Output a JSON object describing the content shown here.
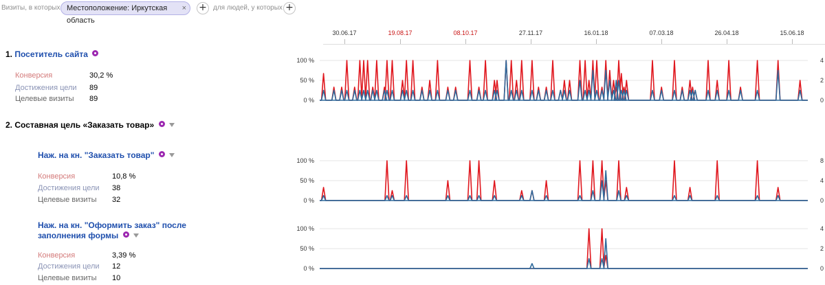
{
  "filter": {
    "prefix": "Визиты, в которых",
    "chip": "Местоположение: Иркутская область",
    "chip_close": "×",
    "add": "+",
    "middle": "для людей, у которых",
    "add2": "+"
  },
  "timeline": {
    "labels": [
      {
        "text": "30.06.17",
        "highlight": false
      },
      {
        "text": "19.08.17",
        "highlight": true
      },
      {
        "text": "08.10.17",
        "highlight": true
      },
      {
        "text": "27.11.17",
        "highlight": false
      },
      {
        "text": "16.01.18",
        "highlight": false
      },
      {
        "text": "07.03.18",
        "highlight": false
      },
      {
        "text": "26.04.18",
        "highlight": false
      },
      {
        "text": "15.06.18",
        "highlight": false
      }
    ]
  },
  "goals": [
    {
      "number": "1.",
      "title": "Посетитель сайта",
      "metrics": [
        {
          "label": "Конверсия",
          "value": "30,2 %"
        },
        {
          "label": "Достижения цели",
          "value": "89"
        },
        {
          "label": "Целевые визиты",
          "value": "89"
        }
      ]
    },
    {
      "number": "2.",
      "title": "Составная цель «Заказать товар»",
      "steps": [
        {
          "title": "Наж. на кн. \"Заказать товар\"",
          "metrics": [
            {
              "label": "Конверсия",
              "value": "10,8 %"
            },
            {
              "label": "Достижения цели",
              "value": "38"
            },
            {
              "label": "Целевые визиты",
              "value": "32"
            }
          ]
        },
        {
          "title_line1": "Наж. на кн. \"Оформить заказ\" после",
          "title_line2": "заполнения формы",
          "metrics": [
            {
              "label": "Конверсия",
              "value": "3,39 %"
            },
            {
              "label": "Достижения цели",
              "value": "12"
            },
            {
              "label": "Целевые визиты",
              "value": "10"
            }
          ]
        }
      ]
    }
  ],
  "colors": {
    "conversion": "#e0171e",
    "visits": "#2e6a9c",
    "grid": "#e4e4e4",
    "axis": "#888888"
  },
  "chart_data": [
    {
      "type": "line",
      "title": "Посетитель сайта",
      "x_range": [
        "2017-06-19",
        "2018-07-01"
      ],
      "y_left": {
        "ticks": [
          "100 %",
          "50 %",
          "0 %"
        ],
        "range": [
          0,
          100
        ]
      },
      "y_right": {
        "ticks": [
          "4",
          "2",
          "0"
        ],
        "range": [
          0,
          4
        ]
      },
      "series": [
        {
          "name": "Конверсия",
          "axis": "left",
          "color": "#e0171e",
          "points": [
            [
              "2017-06-22",
              67
            ],
            [
              "2017-06-30",
              33
            ],
            [
              "2017-07-06",
              33
            ],
            [
              "2017-07-10",
              100
            ],
            [
              "2017-07-16",
              33
            ],
            [
              "2017-07-20",
              100
            ],
            [
              "2017-07-23",
              100
            ],
            [
              "2017-07-26",
              100
            ],
            [
              "2017-07-30",
              33
            ],
            [
              "2017-08-02",
              100
            ],
            [
              "2017-08-08",
              33
            ],
            [
              "2017-08-10",
              100
            ],
            [
              "2017-08-14",
              100
            ],
            [
              "2017-08-22",
              50
            ],
            [
              "2017-08-25",
              100
            ],
            [
              "2017-08-30",
              100
            ],
            [
              "2017-09-06",
              33
            ],
            [
              "2017-09-12",
              50
            ],
            [
              "2017-09-18",
              100
            ],
            [
              "2017-09-26",
              33
            ],
            [
              "2017-10-02",
              33
            ],
            [
              "2017-10-13",
              100
            ],
            [
              "2017-10-20",
              33
            ],
            [
              "2017-10-25",
              100
            ],
            [
              "2017-11-01",
              50
            ],
            [
              "2017-11-03",
              50
            ],
            [
              "2017-11-10",
              100
            ],
            [
              "2017-11-14",
              100
            ],
            [
              "2017-11-18",
              50
            ],
            [
              "2017-11-22",
              100
            ],
            [
              "2017-11-30",
              100
            ],
            [
              "2017-12-05",
              33
            ],
            [
              "2017-12-11",
              33
            ],
            [
              "2017-12-16",
              100
            ],
            [
              "2017-12-22",
              25
            ],
            [
              "2017-12-25",
              50
            ],
            [
              "2017-12-29",
              50
            ],
            [
              "2018-01-06",
              100
            ],
            [
              "2018-01-10",
              100
            ],
            [
              "2018-01-13",
              50
            ],
            [
              "2018-01-16",
              100
            ],
            [
              "2018-01-19",
              100
            ],
            [
              "2018-01-23",
              33
            ],
            [
              "2018-01-26",
              100
            ],
            [
              "2018-01-29",
              75
            ],
            [
              "2018-02-01",
              50
            ],
            [
              "2018-02-03",
              33
            ],
            [
              "2018-02-05",
              100
            ],
            [
              "2018-02-07",
              67
            ],
            [
              "2018-02-09",
              33
            ],
            [
              "2018-02-11",
              50
            ],
            [
              "2018-03-03",
              100
            ],
            [
              "2018-03-10",
              33
            ],
            [
              "2018-03-20",
              100
            ],
            [
              "2018-03-26",
              33
            ],
            [
              "2018-04-01",
              50
            ],
            [
              "2018-04-03",
              33
            ],
            [
              "2018-04-05",
              25
            ],
            [
              "2018-04-15",
              100
            ],
            [
              "2018-04-22",
              50
            ],
            [
              "2018-05-01",
              100
            ],
            [
              "2018-05-10",
              33
            ],
            [
              "2018-05-23",
              100
            ],
            [
              "2018-06-08",
              100
            ],
            [
              "2018-06-25",
              50
            ]
          ]
        },
        {
          "name": "Целевые визиты",
          "axis": "right",
          "color": "#2e6a9c",
          "points": [
            [
              "2017-06-22",
              1
            ],
            [
              "2017-06-30",
              1
            ],
            [
              "2017-07-06",
              1
            ],
            [
              "2017-07-10",
              1
            ],
            [
              "2017-07-16",
              1
            ],
            [
              "2017-07-20",
              1
            ],
            [
              "2017-07-23",
              1
            ],
            [
              "2017-07-26",
              1
            ],
            [
              "2017-07-30",
              1
            ],
            [
              "2017-08-02",
              1
            ],
            [
              "2017-08-08",
              1
            ],
            [
              "2017-08-10",
              1
            ],
            [
              "2017-08-14",
              1
            ],
            [
              "2017-08-22",
              1
            ],
            [
              "2017-08-25",
              1
            ],
            [
              "2017-08-30",
              1
            ],
            [
              "2017-09-06",
              1
            ],
            [
              "2017-09-12",
              1
            ],
            [
              "2017-09-18",
              1
            ],
            [
              "2017-09-26",
              1
            ],
            [
              "2017-10-02",
              1
            ],
            [
              "2017-10-13",
              1
            ],
            [
              "2017-10-20",
              1
            ],
            [
              "2017-10-25",
              1
            ],
            [
              "2017-11-01",
              1
            ],
            [
              "2017-11-03",
              1
            ],
            [
              "2017-11-10",
              4
            ],
            [
              "2017-11-14",
              1
            ],
            [
              "2017-11-18",
              1
            ],
            [
              "2017-11-22",
              1
            ],
            [
              "2017-11-30",
              1
            ],
            [
              "2017-12-05",
              1
            ],
            [
              "2017-12-11",
              1
            ],
            [
              "2017-12-16",
              1
            ],
            [
              "2017-12-22",
              1
            ],
            [
              "2017-12-25",
              1
            ],
            [
              "2017-12-29",
              1
            ],
            [
              "2018-01-06",
              2
            ],
            [
              "2018-01-10",
              1
            ],
            [
              "2018-01-13",
              1
            ],
            [
              "2018-01-16",
              3
            ],
            [
              "2018-01-19",
              1
            ],
            [
              "2018-01-23",
              1
            ],
            [
              "2018-01-26",
              3
            ],
            [
              "2018-01-29",
              2
            ],
            [
              "2018-02-01",
              1
            ],
            [
              "2018-02-03",
              2
            ],
            [
              "2018-02-05",
              2
            ],
            [
              "2018-02-07",
              1
            ],
            [
              "2018-02-09",
              1
            ],
            [
              "2018-02-11",
              1
            ],
            [
              "2018-03-03",
              1
            ],
            [
              "2018-03-10",
              1
            ],
            [
              "2018-03-20",
              1
            ],
            [
              "2018-03-26",
              1
            ],
            [
              "2018-04-01",
              1
            ],
            [
              "2018-04-03",
              1
            ],
            [
              "2018-04-05",
              1
            ],
            [
              "2018-04-15",
              1
            ],
            [
              "2018-04-22",
              1
            ],
            [
              "2018-05-01",
              1
            ],
            [
              "2018-05-10",
              1
            ],
            [
              "2018-05-23",
              1
            ],
            [
              "2018-06-08",
              3
            ],
            [
              "2018-06-25",
              1
            ]
          ]
        }
      ]
    },
    {
      "type": "line",
      "title": "Наж. на кн. \"Заказать товар\"",
      "x_range": [
        "2017-06-19",
        "2018-07-01"
      ],
      "y_left": {
        "ticks": [
          "100 %",
          "50 %",
          "0 %"
        ],
        "range": [
          0,
          100
        ]
      },
      "y_right": {
        "ticks": [
          "8",
          "4",
          "0"
        ],
        "range": [
          0,
          8
        ]
      },
      "series": [
        {
          "name": "Конверсия",
          "axis": "left",
          "color": "#e0171e",
          "points": [
            [
              "2017-06-22",
              33
            ],
            [
              "2017-08-10",
              100
            ],
            [
              "2017-08-14",
              25
            ],
            [
              "2017-08-25",
              100
            ],
            [
              "2017-09-26",
              50
            ],
            [
              "2017-10-13",
              100
            ],
            [
              "2017-10-20",
              100
            ],
            [
              "2017-11-01",
              50
            ],
            [
              "2017-11-22",
              25
            ],
            [
              "2017-11-30",
              25
            ],
            [
              "2017-12-11",
              50
            ],
            [
              "2018-01-06",
              100
            ],
            [
              "2018-01-16",
              100
            ],
            [
              "2018-01-23",
              100
            ],
            [
              "2018-01-26",
              50
            ],
            [
              "2018-02-05",
              100
            ],
            [
              "2018-02-11",
              33
            ],
            [
              "2018-03-20",
              100
            ],
            [
              "2018-04-01",
              33
            ],
            [
              "2018-04-22",
              100
            ],
            [
              "2018-05-23",
              100
            ],
            [
              "2018-06-08",
              33
            ]
          ]
        },
        {
          "name": "Целевые визиты",
          "axis": "right",
          "color": "#2e6a9c",
          "points": [
            [
              "2017-06-22",
              1
            ],
            [
              "2017-08-10",
              1
            ],
            [
              "2017-08-14",
              1
            ],
            [
              "2017-08-25",
              1
            ],
            [
              "2017-09-26",
              1
            ],
            [
              "2017-10-13",
              1
            ],
            [
              "2017-10-20",
              1
            ],
            [
              "2017-11-01",
              1
            ],
            [
              "2017-11-22",
              1
            ],
            [
              "2017-11-30",
              2
            ],
            [
              "2017-12-11",
              1
            ],
            [
              "2018-01-06",
              1
            ],
            [
              "2018-01-16",
              2
            ],
            [
              "2018-01-23",
              4
            ],
            [
              "2018-01-26",
              6
            ],
            [
              "2018-02-05",
              2
            ],
            [
              "2018-02-11",
              1
            ],
            [
              "2018-03-20",
              1
            ],
            [
              "2018-04-01",
              1
            ],
            [
              "2018-04-22",
              1
            ],
            [
              "2018-05-23",
              1
            ],
            [
              "2018-06-08",
              1
            ]
          ]
        }
      ]
    },
    {
      "type": "line",
      "title": "Наж. на кн. \"Оформить заказ\" после заполнения формы",
      "x_range": [
        "2017-06-19",
        "2018-07-01"
      ],
      "y_left": {
        "ticks": [
          "100 %",
          "50 %",
          "0 %"
        ],
        "range": [
          0,
          100
        ]
      },
      "y_right": {
        "ticks": [
          "4",
          "2",
          "0"
        ],
        "range": [
          0,
          4
        ]
      },
      "series": [
        {
          "name": "Конверсия",
          "axis": "left",
          "color": "#e0171e",
          "points": [
            [
              "2018-01-13",
              100
            ],
            [
              "2018-01-23",
              100
            ],
            [
              "2018-01-26",
              33
            ]
          ]
        },
        {
          "name": "Целевые визиты",
          "axis": "right",
          "color": "#2e6a9c",
          "points": [
            [
              "2017-11-30",
              0.5
            ],
            [
              "2018-01-13",
              1
            ],
            [
              "2018-01-23",
              1
            ],
            [
              "2018-01-26",
              3
            ]
          ]
        }
      ]
    }
  ]
}
